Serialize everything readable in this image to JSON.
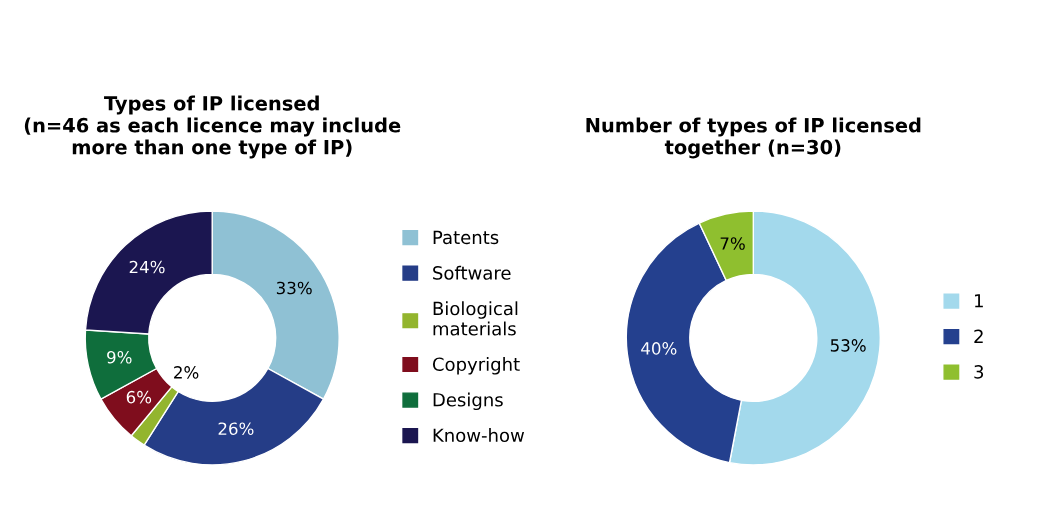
{
  "chart_data": [
    {
      "type": "donut",
      "title": "Types of IP licensed\n(n=46 as each licence may include\nmore than one type of IP)",
      "categories": [
        "Patents",
        "Software",
        "Biological\nmaterials",
        "Copyright",
        "Designs",
        "Know-how"
      ],
      "values": [
        33,
        26,
        2,
        6,
        9,
        24
      ],
      "value_labels": [
        "33%",
        "26%",
        "2%",
        "6%",
        "9%",
        "24%"
      ],
      "colors": [
        "#8fc1d4",
        "#253d87",
        "#93b52e",
        "#7f0d1d",
        "#0f6e3c",
        "#1b1650"
      ],
      "legend": "right"
    },
    {
      "type": "donut",
      "title": "Number of types of IP licensed\ntogether (n=30)",
      "categories": [
        "1",
        "2",
        "3"
      ],
      "values": [
        53,
        40,
        7
      ],
      "value_labels": [
        "53%",
        "40%",
        "7%"
      ],
      "colors": [
        "#a3d9ec",
        "#24408e",
        "#8fbf2f"
      ],
      "legend": "right"
    }
  ]
}
